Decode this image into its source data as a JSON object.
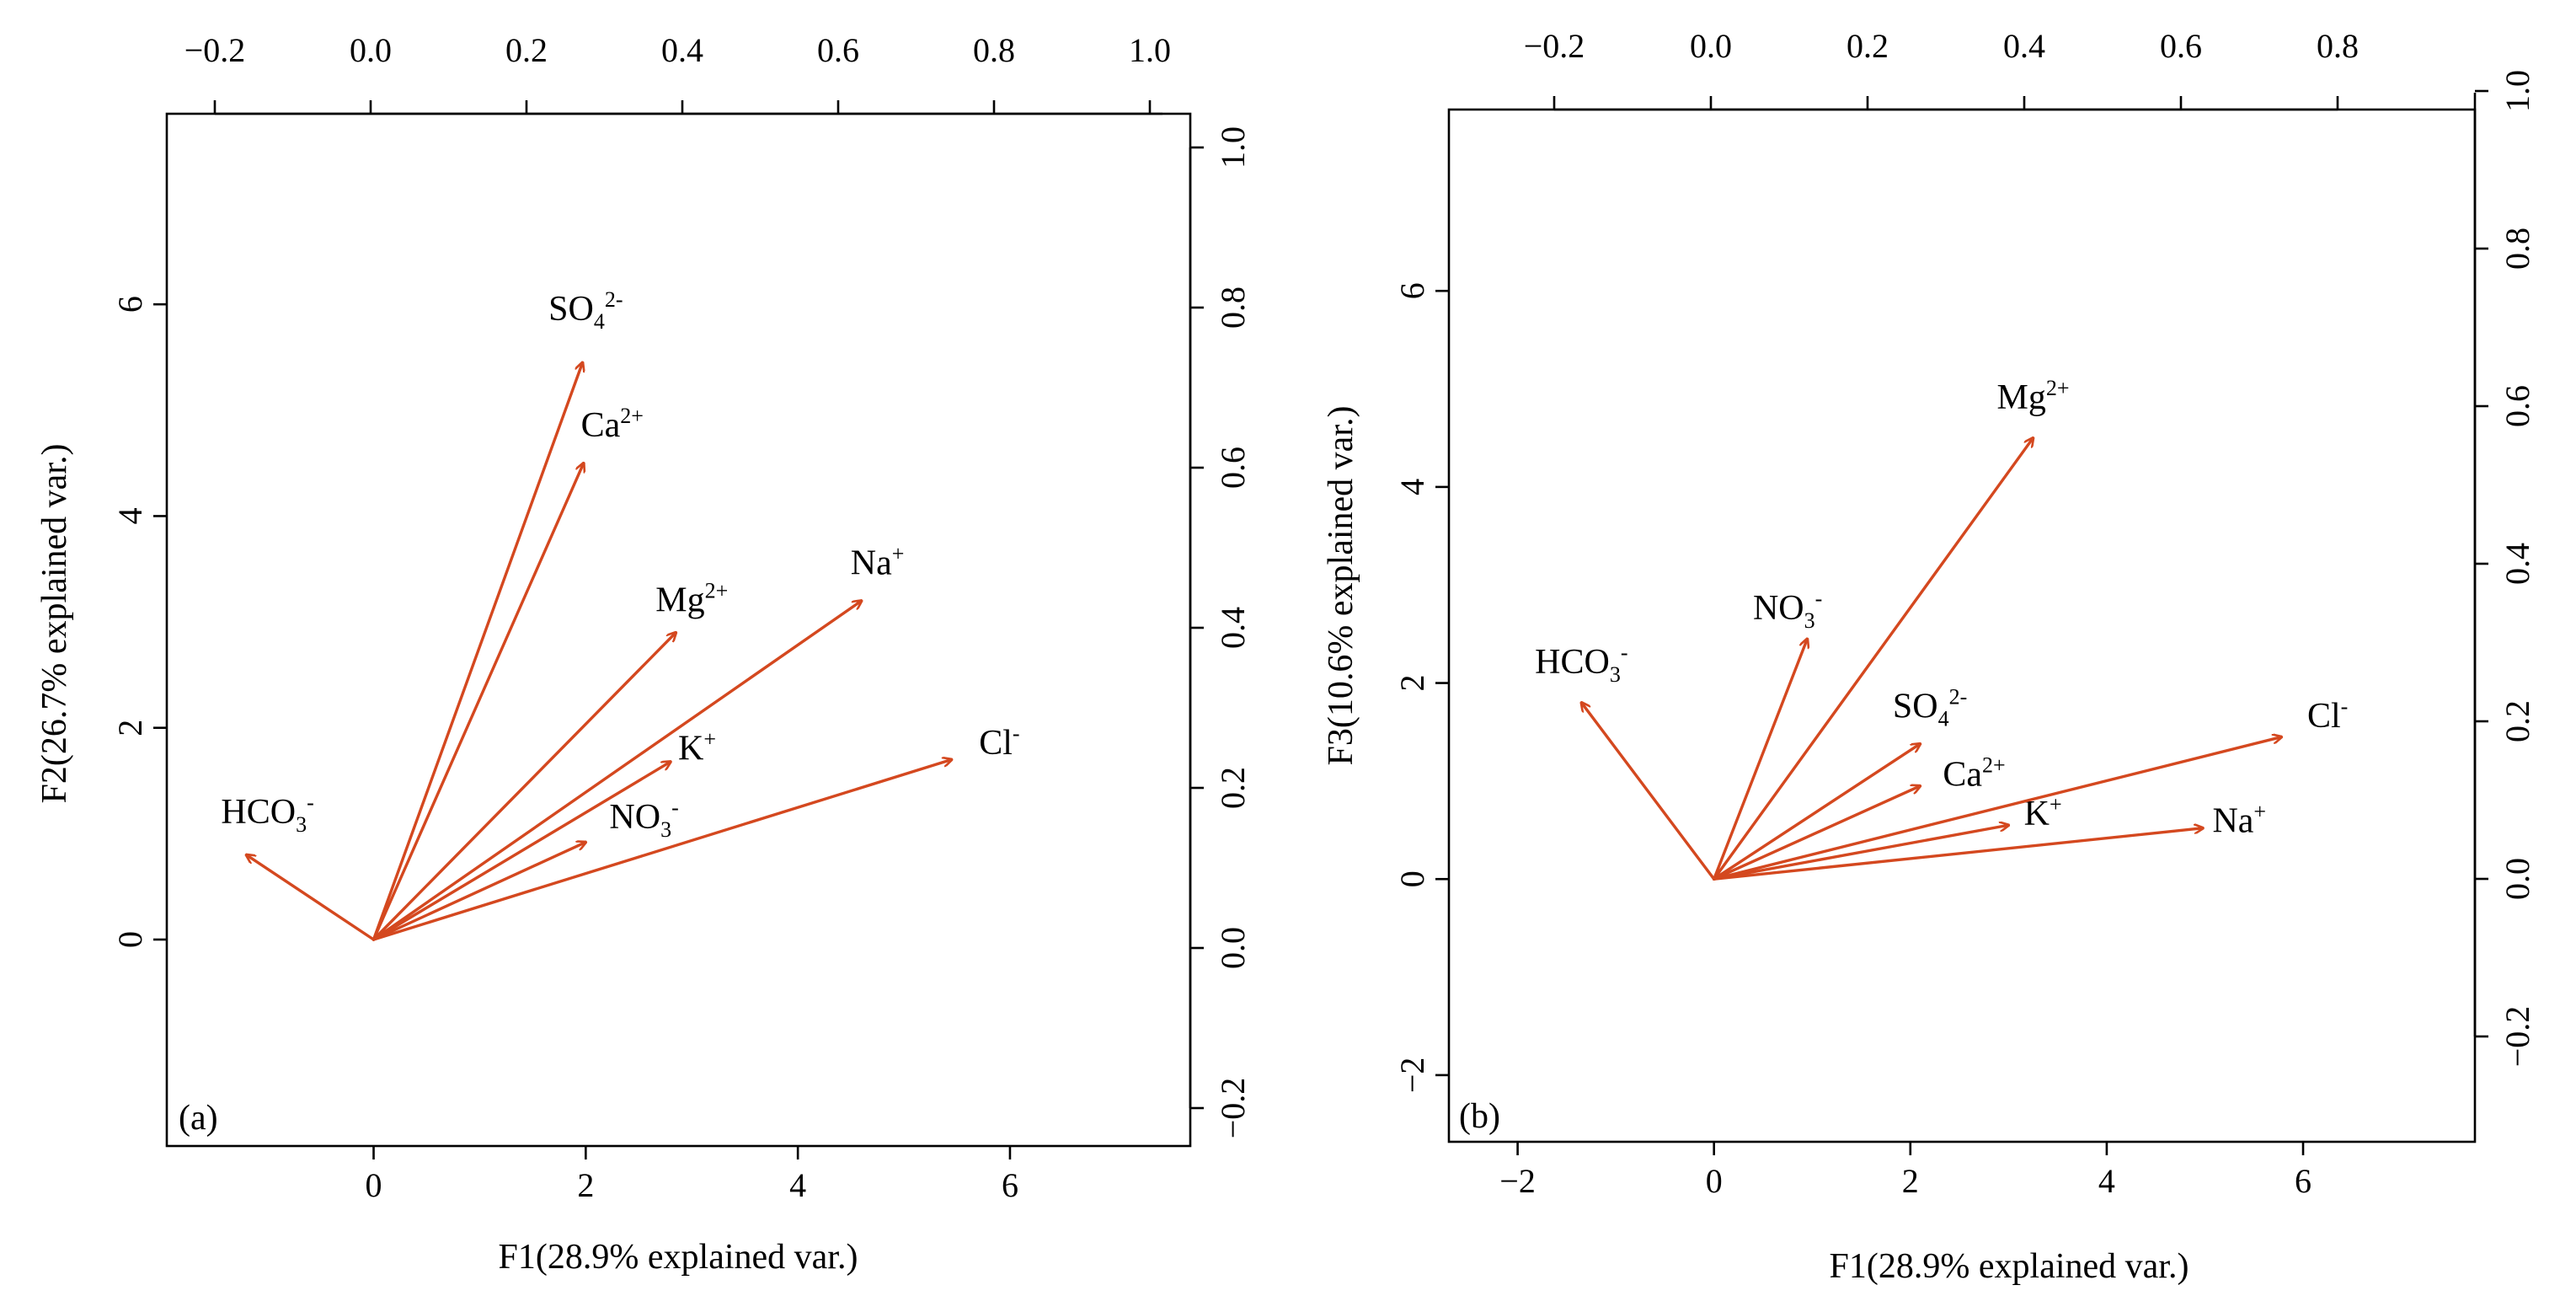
{
  "chart_data": [
    {
      "type": "biplot",
      "panel_label": "(a)",
      "xlabel": "F1(28.9% explained var.)",
      "ylabel": "F2(26.7% explained var.)",
      "arrow_color": "#d4481f",
      "score_axes": {
        "x_ticks": [
          0,
          2,
          4,
          6
        ],
        "y_ticks": [
          0,
          2,
          4,
          6
        ],
        "x_range": [
          -1.95,
          7.7
        ],
        "y_range": [
          -1.95,
          7.8
        ]
      },
      "loading_axes": {
        "top_ticks": [
          "−0.2",
          "0.0",
          "0.2",
          "0.4",
          "0.6",
          "0.8",
          "1.0"
        ],
        "right_ticks": [
          "−0.2",
          "0.0",
          "0.2",
          "0.4",
          "0.6",
          "0.8",
          "1.0"
        ]
      },
      "vectors": [
        {
          "base": "SO",
          "sub": "4",
          "sup": "2-",
          "x": 1.97,
          "y": 5.45,
          "lx": 2.0,
          "ly": 5.85
        },
        {
          "base": "Ca",
          "sup": "2+",
          "x": 1.98,
          "y": 4.5,
          "lx": 2.25,
          "ly": 4.75
        },
        {
          "base": "Mg",
          "sup": "2+",
          "x": 2.85,
          "y": 2.9,
          "lx": 3.0,
          "ly": 3.1
        },
        {
          "base": "Na",
          "sup": "+",
          "x": 4.6,
          "y": 3.2,
          "lx": 4.75,
          "ly": 3.45
        },
        {
          "base": "K",
          "sup": "+",
          "x": 2.8,
          "y": 1.68,
          "lx": 3.05,
          "ly": 1.7
        },
        {
          "base": "NO",
          "sub": "3",
          "sup": "-",
          "x": 2.0,
          "y": 0.92,
          "lx": 2.55,
          "ly": 1.05
        },
        {
          "base": "Cl",
          "sup": "-",
          "x": 5.45,
          "y": 1.7,
          "lx": 5.9,
          "ly": 1.75
        },
        {
          "base": "HCO",
          "sub": "3",
          "sup": "-",
          "x": -1.2,
          "y": 0.8,
          "lx": -1.0,
          "ly": 1.1
        }
      ]
    },
    {
      "type": "biplot",
      "panel_label": "(b)",
      "xlabel": "F1(28.9% explained var.)",
      "ylabel": "F3(10.6% explained var.)",
      "arrow_color": "#d4481f",
      "score_axes": {
        "x_ticks": [
          -2,
          0,
          2,
          4,
          6
        ],
        "y_ticks": [
          -2,
          0,
          2,
          4,
          6
        ],
        "x_range": [
          -2.7,
          7.75
        ],
        "y_range": [
          -2.68,
          7.85
        ]
      },
      "loading_axes": {
        "top_ticks": [
          "−0.2",
          "0.0",
          "0.2",
          "0.4",
          "0.6",
          "0.8"
        ],
        "right_ticks": [
          "−0.2",
          "0.0",
          "0.2",
          "0.4",
          "0.6",
          "0.8",
          "1.0"
        ]
      },
      "vectors": [
        {
          "base": "Mg",
          "sup": "2+",
          "x": 3.25,
          "y": 4.5,
          "lx": 3.25,
          "ly": 4.8
        },
        {
          "base": "NO",
          "sub": "3",
          "sup": "-",
          "x": 0.95,
          "y": 2.45,
          "lx": 0.75,
          "ly": 2.65
        },
        {
          "base": "HCO",
          "sub": "3",
          "sup": "-",
          "x": -1.35,
          "y": 1.8,
          "lx": -1.35,
          "ly": 2.1
        },
        {
          "base": "SO",
          "sub": "4",
          "sup": "2-",
          "x": 2.1,
          "y": 1.38,
          "lx": 2.2,
          "ly": 1.65
        },
        {
          "base": "Ca",
          "sup": "2+",
          "x": 2.1,
          "y": 0.95,
          "lx": 2.65,
          "ly": 0.95
        },
        {
          "base": "K",
          "sup": "+",
          "x": 3.0,
          "y": 0.55,
          "lx": 3.35,
          "ly": 0.55
        },
        {
          "base": "Na",
          "sup": "+",
          "x": 4.98,
          "y": 0.52,
          "lx": 5.35,
          "ly": 0.48
        },
        {
          "base": "Cl",
          "sup": "-",
          "x": 5.78,
          "y": 1.45,
          "lx": 6.25,
          "ly": 1.55
        }
      ]
    }
  ]
}
